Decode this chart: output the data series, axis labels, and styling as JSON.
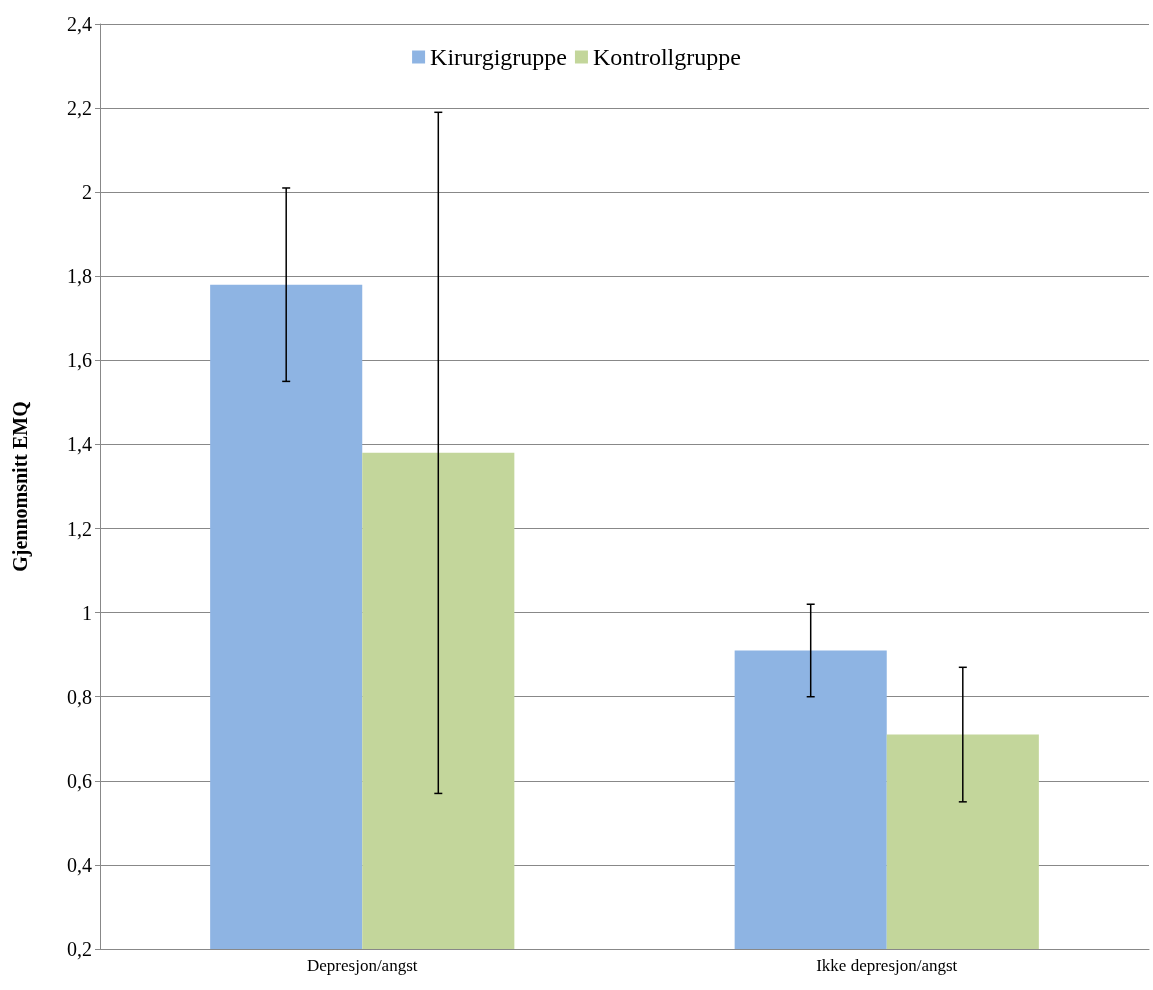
{
  "chart_data": {
    "type": "bar",
    "ylabel": "Gjennomsnitt EMQ",
    "categories": [
      "Depresjon/angst",
      "Ikke depresjon/angst"
    ],
    "series": [
      {
        "name": "Kirurgigruppe",
        "color": "#8eb4e3",
        "values": [
          1.78,
          0.91
        ],
        "errors": [
          [
            1.55,
            2.01
          ],
          [
            0.8,
            1.02
          ]
        ]
      },
      {
        "name": "Kontrollgruppe",
        "color": "#c3d69b",
        "values": [
          1.38,
          0.71
        ],
        "errors": [
          [
            0.57,
            2.19
          ],
          [
            0.55,
            0.87
          ]
        ]
      }
    ],
    "ylim": [
      0.2,
      2.4
    ],
    "yticks": [
      {
        "value": 0.2,
        "label": "0,2"
      },
      {
        "value": 0.4,
        "label": "0,4"
      },
      {
        "value": 0.6,
        "label": "0,6"
      },
      {
        "value": 0.8,
        "label": "0,8"
      },
      1,
      {
        "value": 1.2,
        "label": "1,2"
      },
      {
        "value": 1.4,
        "label": "1,4"
      },
      {
        "value": 1.6,
        "label": "1,6"
      },
      {
        "value": 1.8,
        "label": "1,8"
      },
      2,
      {
        "value": 2.2,
        "label": "2,2"
      },
      {
        "value": 2.4,
        "label": "2,4"
      }
    ],
    "grid": "y",
    "legend": "top"
  }
}
